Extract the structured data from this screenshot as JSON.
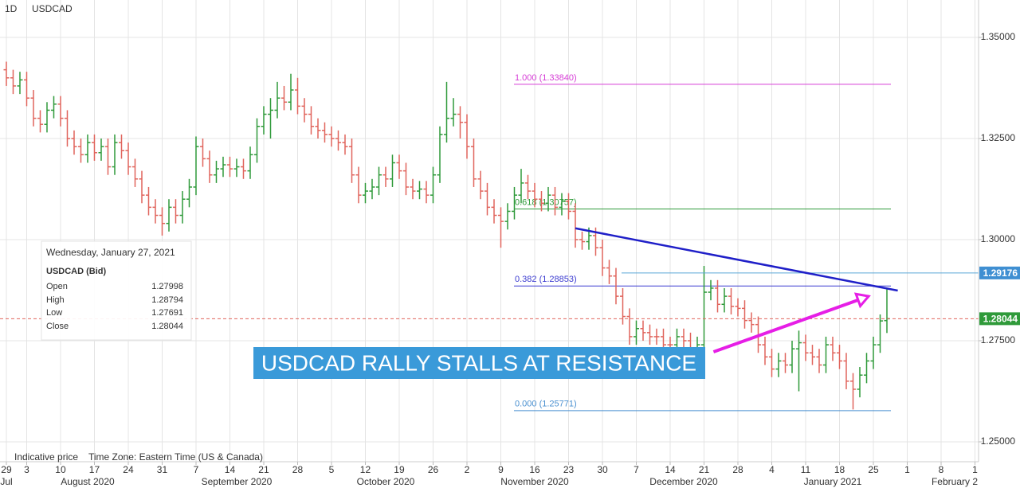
{
  "chart_data": {
    "type": "ohlc",
    "timeframe": "1D",
    "title": "USDCAD",
    "up_color": "#2f9a3a",
    "down_color": "#e0645c",
    "open": [
      1.342,
      1.34,
      1.338,
      1.3395,
      1.335,
      1.33,
      1.3285,
      1.332,
      1.3335,
      1.33,
      1.325,
      1.323,
      1.321,
      1.324,
      1.3215,
      1.323,
      1.318,
      1.324,
      1.322,
      1.318,
      1.315,
      1.311,
      1.308,
      1.306,
      1.304,
      1.308,
      1.306,
      1.31,
      1.313,
      1.323,
      1.32,
      1.316,
      1.3175,
      1.3185,
      1.3175,
      1.318,
      1.317,
      1.321,
      1.328,
      1.331,
      1.332,
      1.335,
      1.334,
      1.337,
      1.333,
      1.331,
      1.328,
      1.327,
      1.326,
      1.325,
      1.324,
      1.323,
      1.316,
      1.311,
      1.312,
      1.313,
      1.316,
      1.315,
      1.319,
      1.317,
      1.313,
      1.312,
      1.3125,
      1.311,
      1.316,
      1.326,
      1.33,
      1.331,
      1.329,
      1.323,
      1.315,
      1.312,
      1.308,
      1.306,
      1.3045,
      1.307,
      1.311,
      1.314,
      1.312,
      1.31,
      1.309,
      1.311,
      1.308,
      1.3095,
      1.307,
      1.3,
      1.2995,
      1.301,
      1.298,
      1.293,
      1.291,
      1.286,
      1.281,
      1.276,
      1.278,
      1.277,
      1.276,
      1.276,
      1.274,
      1.274,
      1.276,
      1.275,
      1.273,
      1.274,
      1.287,
      1.288,
      1.284,
      1.286,
      1.2835,
      1.283,
      1.28,
      1.279,
      1.274,
      1.271,
      1.268,
      1.27,
      1.269,
      1.273,
      1.2745,
      1.272,
      1.271,
      1.269,
      1.274,
      1.272,
      1.27,
      1.265,
      1.263,
      1.2665,
      1.27,
      1.274,
      1.27998
    ],
    "high": [
      1.344,
      1.342,
      1.3415,
      1.3415,
      1.337,
      1.332,
      1.334,
      1.3355,
      1.3355,
      1.332,
      1.327,
      1.325,
      1.326,
      1.326,
      1.325,
      1.325,
      1.326,
      1.326,
      1.324,
      1.32,
      1.317,
      1.313,
      1.31,
      1.308,
      1.31,
      1.31,
      1.312,
      1.315,
      1.3255,
      1.325,
      1.322,
      1.3195,
      1.3205,
      1.3205,
      1.32,
      1.32,
      1.323,
      1.33,
      1.333,
      1.335,
      1.339,
      1.338,
      1.341,
      1.34,
      1.335,
      1.333,
      1.33,
      1.329,
      1.328,
      1.327,
      1.326,
      1.325,
      1.318,
      1.314,
      1.315,
      1.318,
      1.318,
      1.321,
      1.321,
      1.319,
      1.315,
      1.3145,
      1.3145,
      1.318,
      1.328,
      1.339,
      1.335,
      1.333,
      1.331,
      1.325,
      1.317,
      1.314,
      1.31,
      1.308,
      1.309,
      1.313,
      1.3175,
      1.316,
      1.314,
      1.312,
      1.313,
      1.313,
      1.3115,
      1.3115,
      1.309,
      1.302,
      1.303,
      1.303,
      1.3,
      1.295,
      1.293,
      1.288,
      1.283,
      1.28,
      1.28,
      1.279,
      1.278,
      1.278,
      1.276,
      1.278,
      1.278,
      1.277,
      1.276,
      1.2935,
      1.29,
      1.29,
      1.288,
      1.288,
      1.2855,
      1.285,
      1.282,
      1.281,
      1.276,
      1.273,
      1.272,
      1.272,
      1.275,
      1.2775,
      1.2765,
      1.274,
      1.273,
      1.276,
      1.276,
      1.274,
      1.272,
      1.267,
      1.2685,
      1.272,
      1.276,
      1.2815,
      1.28794
    ],
    "low": [
      1.338,
      1.336,
      1.336,
      1.333,
      1.328,
      1.3265,
      1.3265,
      1.33,
      1.328,
      1.323,
      1.321,
      1.319,
      1.319,
      1.3195,
      1.3195,
      1.316,
      1.316,
      1.32,
      1.316,
      1.313,
      1.309,
      1.306,
      1.304,
      1.301,
      1.302,
      1.304,
      1.304,
      1.308,
      1.311,
      1.318,
      1.314,
      1.314,
      1.3155,
      1.3155,
      1.3155,
      1.315,
      1.315,
      1.319,
      1.326,
      1.325,
      1.33,
      1.332,
      1.332,
      1.331,
      1.329,
      1.326,
      1.325,
      1.324,
      1.323,
      1.322,
      1.321,
      1.314,
      1.309,
      1.309,
      1.31,
      1.311,
      1.313,
      1.313,
      1.315,
      1.311,
      1.31,
      1.31,
      1.309,
      1.309,
      1.314,
      1.324,
      1.328,
      1.325,
      1.32,
      1.313,
      1.31,
      1.306,
      1.304,
      1.298,
      1.3025,
      1.305,
      1.309,
      1.31,
      1.308,
      1.307,
      1.307,
      1.306,
      1.306,
      1.305,
      1.298,
      1.2975,
      1.2975,
      1.296,
      1.291,
      1.289,
      1.284,
      1.279,
      1.274,
      1.274,
      1.275,
      1.274,
      1.274,
      1.272,
      1.272,
      1.272,
      1.273,
      1.271,
      1.271,
      1.272,
      1.285,
      1.282,
      1.282,
      1.2815,
      1.281,
      1.278,
      1.277,
      1.272,
      1.269,
      1.266,
      1.266,
      1.267,
      1.267,
      1.2625,
      1.27,
      1.269,
      1.267,
      1.267,
      1.27,
      1.268,
      1.263,
      1.258,
      1.261,
      1.2645,
      1.268,
      1.272,
      1.27691
    ],
    "close": [
      1.34,
      1.338,
      1.3395,
      1.335,
      1.33,
      1.3285,
      1.332,
      1.3335,
      1.33,
      1.325,
      1.323,
      1.321,
      1.324,
      1.3215,
      1.323,
      1.318,
      1.324,
      1.322,
      1.318,
      1.315,
      1.311,
      1.308,
      1.306,
      1.304,
      1.308,
      1.306,
      1.31,
      1.313,
      1.323,
      1.32,
      1.316,
      1.3175,
      1.3185,
      1.3175,
      1.318,
      1.317,
      1.321,
      1.328,
      1.331,
      1.332,
      1.335,
      1.334,
      1.337,
      1.333,
      1.331,
      1.328,
      1.327,
      1.326,
      1.325,
      1.324,
      1.323,
      1.316,
      1.311,
      1.312,
      1.313,
      1.316,
      1.315,
      1.319,
      1.317,
      1.313,
      1.312,
      1.3125,
      1.311,
      1.316,
      1.326,
      1.33,
      1.331,
      1.329,
      1.323,
      1.315,
      1.312,
      1.308,
      1.306,
      1.3045,
      1.307,
      1.311,
      1.314,
      1.312,
      1.31,
      1.309,
      1.311,
      1.308,
      1.3095,
      1.307,
      1.3,
      1.2995,
      1.301,
      1.298,
      1.293,
      1.291,
      1.286,
      1.281,
      1.276,
      1.278,
      1.277,
      1.276,
      1.276,
      1.274,
      1.274,
      1.276,
      1.275,
      1.273,
      1.274,
      1.287,
      1.288,
      1.284,
      1.286,
      1.2835,
      1.283,
      1.28,
      1.279,
      1.274,
      1.271,
      1.268,
      1.27,
      1.269,
      1.273,
      1.2745,
      1.272,
      1.271,
      1.269,
      1.274,
      1.272,
      1.27,
      1.265,
      1.263,
      1.2665,
      1.27,
      1.274,
      1.2799,
      1.28044
    ],
    "xlim": [
      -0.94,
      143.53
    ],
    "ylim": [
      1.24508,
      1.35925
    ],
    "grid": true,
    "yticks": [
      {
        "value": 1.25,
        "label": "1.25000"
      },
      {
        "value": 1.275,
        "label": "1.27500"
      },
      {
        "value": 1.3,
        "label": "1.30000"
      },
      {
        "value": 1.325,
        "label": "1.32500"
      },
      {
        "value": 1.35,
        "label": "1.35000"
      }
    ],
    "xticks": [
      {
        "value": 0,
        "label": "29"
      },
      {
        "value": 3,
        "label": "3"
      },
      {
        "value": 8,
        "label": "10"
      },
      {
        "value": 13,
        "label": "17"
      },
      {
        "value": 18,
        "label": "24"
      },
      {
        "value": 23,
        "label": "31"
      },
      {
        "value": 28,
        "label": "7"
      },
      {
        "value": 33,
        "label": "14"
      },
      {
        "value": 38,
        "label": "21"
      },
      {
        "value": 43,
        "label": "28"
      },
      {
        "value": 48,
        "label": "5"
      },
      {
        "value": 53,
        "label": "12"
      },
      {
        "value": 58,
        "label": "19"
      },
      {
        "value": 63,
        "label": "26"
      },
      {
        "value": 68,
        "label": "2"
      },
      {
        "value": 73,
        "label": "9"
      },
      {
        "value": 78,
        "label": "16"
      },
      {
        "value": 83,
        "label": "23"
      },
      {
        "value": 88,
        "label": "30"
      },
      {
        "value": 93,
        "label": "7"
      },
      {
        "value": 98,
        "label": "14"
      },
      {
        "value": 103,
        "label": "21"
      },
      {
        "value": 108,
        "label": "28"
      },
      {
        "value": 113,
        "label": "4"
      },
      {
        "value": 118,
        "label": "11"
      },
      {
        "value": 123,
        "label": "18"
      },
      {
        "value": 128,
        "label": "25"
      },
      {
        "value": 133,
        "label": "1"
      },
      {
        "value": 138,
        "label": "8"
      },
      {
        "value": 143,
        "label": "1"
      }
    ],
    "month_ticks": [
      {
        "value": 0,
        "label": "Jul"
      },
      {
        "value": 12,
        "label": "August 2020"
      },
      {
        "value": 34,
        "label": "September 2020"
      },
      {
        "value": 56,
        "label": "October 2020"
      },
      {
        "value": 78,
        "label": "November 2020"
      },
      {
        "value": 100,
        "label": "December 2020"
      },
      {
        "value": 122,
        "label": "January 2021"
      },
      {
        "value": 140,
        "label": "February 2"
      }
    ],
    "levels": [
      {
        "label": "1.000 (1.33840)",
        "value": 1.3384,
        "color": "#d63cd6"
      },
      {
        "label": "0.618 (1.30757)",
        "value": 1.30757,
        "color": "#2f9a3a"
      },
      {
        "label": "0.382 (1.28853)",
        "value": 1.28853,
        "color": "#3b3bd0"
      },
      {
        "label": "0.000 (1.25771)",
        "value": 1.25771,
        "color": "#4a90d0"
      }
    ],
    "price_tags": [
      {
        "value": 1.29176,
        "label": "1.29176",
        "color": "#3f8fd2"
      },
      {
        "value": 1.28044,
        "label": "1.28044",
        "color": "#2f9a3a"
      }
    ],
    "trendline": {
      "x": [
        84,
        131.6
      ],
      "y": [
        1.3028,
        1.2874
      ],
      "color": "#1f1fc8"
    },
    "arrow": {
      "x": [
        104.4,
        127.3
      ],
      "y": [
        1.27224,
        1.286
      ],
      "color": "#e61ee6"
    },
    "annotation": "USDCAD RALLY STALLS AT RESISTANCE",
    "info_box": {
      "date": "Wednesday, January 27, 2021",
      "symbol": "USDCAD (Bid)",
      "labels": [
        "Open",
        "High",
        "Low",
        "Close"
      ]
    },
    "footer": [
      "Indicative price",
      "Time Zone: Eastern Time (US & Canada)"
    ]
  }
}
